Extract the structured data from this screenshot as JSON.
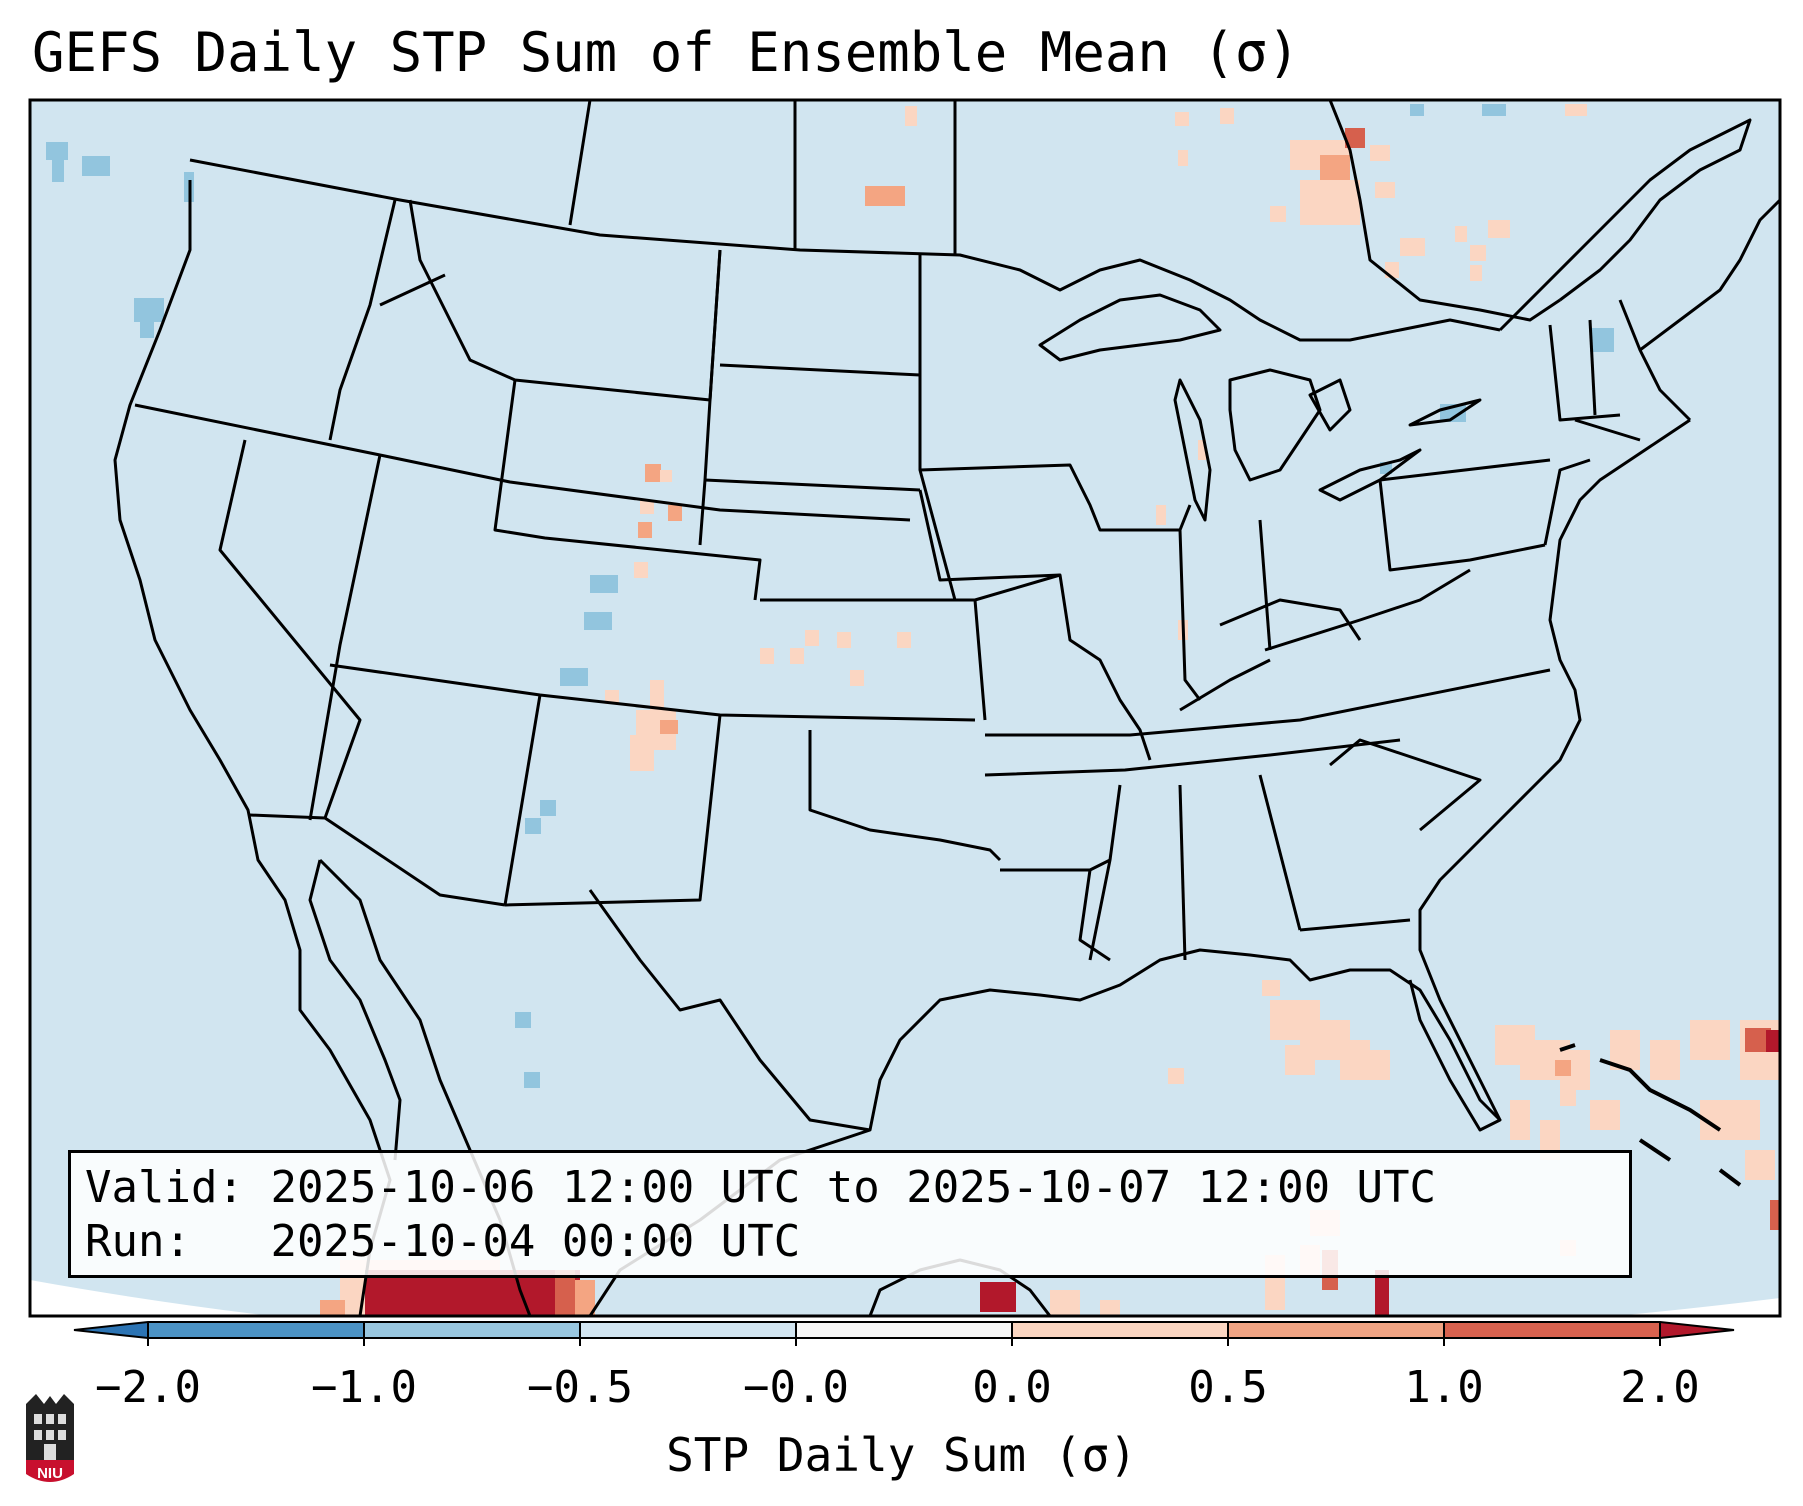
{
  "title": "GEFS Daily STP Sum of Ensemble Mean (σ)",
  "info": {
    "valid_label": "Valid:",
    "valid_value": "2025-10-06 12:00 UTC to 2025-10-07 12:00 UTC",
    "run_label": "Run:",
    "run_value": "2025-10-04 00:00 UTC"
  },
  "colorbar": {
    "label": "STP Daily Sum (σ)",
    "ticks": [
      "−2.0",
      "−1.0",
      "−0.5",
      "−0.0",
      "0.0",
      "0.5",
      "1.0",
      "2.0"
    ],
    "colors": [
      "#2c74b4",
      "#4c93c5",
      "#99c7e0",
      "#d2e5f1",
      "#f7f7f7",
      "#fbd6c2",
      "#f0a484",
      "#d8624f",
      "#b2182b"
    ],
    "extend": "both"
  },
  "map": {
    "background_color": "#d1e5f0",
    "outside_color": "#ffffff",
    "region": "Continental United States with southern Canada, Mexico, Gulf of Mexico and Caribbean"
  },
  "logo": {
    "text": "NIU",
    "color": "#c8102e"
  }
}
